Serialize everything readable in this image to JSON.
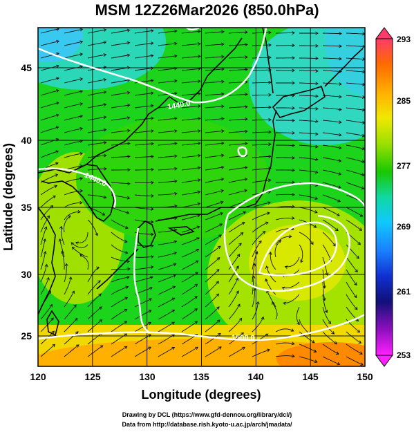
{
  "title": "MSM 12Z26Mar2026 (850.0hPa)",
  "x_axis": {
    "label": "Longitude (degrees)",
    "ticks": [
      "120",
      "125",
      "130",
      "135",
      "140",
      "145",
      "150"
    ]
  },
  "y_axis": {
    "label": "Latitude  (degrees)",
    "ticks": [
      "25",
      "30",
      "35",
      "40",
      "45"
    ]
  },
  "colorbar": {
    "ticks": [
      "293",
      "285",
      "277",
      "269",
      "261",
      "253"
    ],
    "palette": [
      "#ff3b6a",
      "#ff6a00",
      "#ffb000",
      "#f0e800",
      "#9ee000",
      "#19c800",
      "#10d8a0",
      "#10c8ff",
      "#1a80ff",
      "#1030d0",
      "#101078",
      "#9010c0",
      "#ff20ff"
    ]
  },
  "contour_labels": [
    "1440.0",
    "1440.0",
    "1500.0"
  ],
  "credits": {
    "line1": "Drawing by DCL (https://www.gfd-dennou.org/library/dcl/)",
    "line2": "Data from http://database.rish.kyoto-u.ac.jp/arch/jmadata/"
  }
}
